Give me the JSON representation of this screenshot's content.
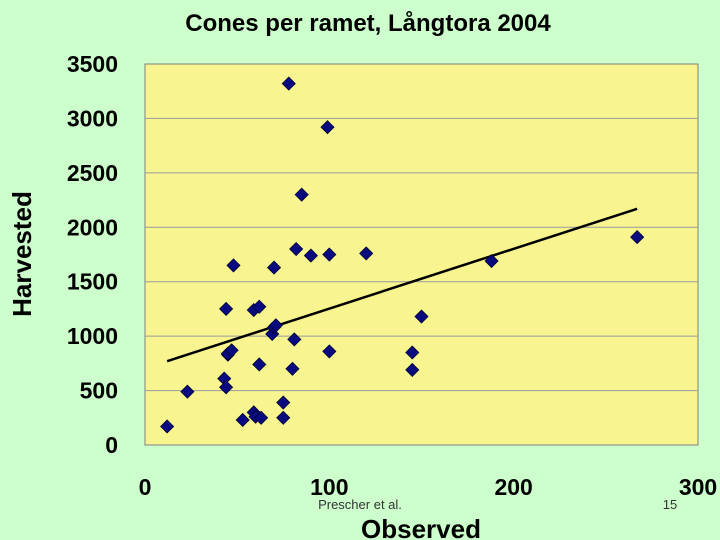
{
  "footer": {
    "credit": "Prescher et al.",
    "page_number": "15"
  },
  "chart_data": {
    "type": "scatter",
    "title": "Cones per ramet, Långtora 2004",
    "xlabel": "Observed",
    "ylabel": "Harvested",
    "xlim": [
      0,
      300
    ],
    "ylim": [
      0,
      3500
    ],
    "xticks": [
      "0",
      "100",
      "200",
      "300"
    ],
    "yticks": [
      "0",
      "500",
      "1000",
      "1500",
      "2000",
      "2500",
      "3000",
      "3500"
    ],
    "grid": "horizontal",
    "legend": "none",
    "colors": {
      "background": "#ccffcc",
      "plot_area": "#f8f590",
      "marker": "#0a0a80",
      "trendline": "#000000"
    },
    "series": [
      {
        "marker": "diamond",
        "x": [
          12,
          23,
          43,
          44,
          44,
          45,
          45,
          47,
          48,
          53,
          59,
          59,
          60,
          62,
          62,
          63,
          69,
          70,
          70,
          71,
          75,
          75,
          78,
          80,
          81,
          82,
          85,
          90,
          99,
          100,
          100,
          120,
          145,
          145,
          150,
          188,
          267
        ],
        "y": [
          170,
          490,
          610,
          530,
          1250,
          830,
          840,
          870,
          1650,
          230,
          300,
          1240,
          260,
          1270,
          740,
          250,
          1020,
          1630,
          1080,
          1100,
          390,
          250,
          3320,
          700,
          970,
          1800,
          2300,
          1740,
          2920,
          1750,
          860,
          1760,
          850,
          690,
          1180,
          1690,
          1910
        ]
      }
    ],
    "trendline": {
      "x": [
        12,
        267
      ],
      "y": [
        770,
        2170
      ]
    }
  }
}
